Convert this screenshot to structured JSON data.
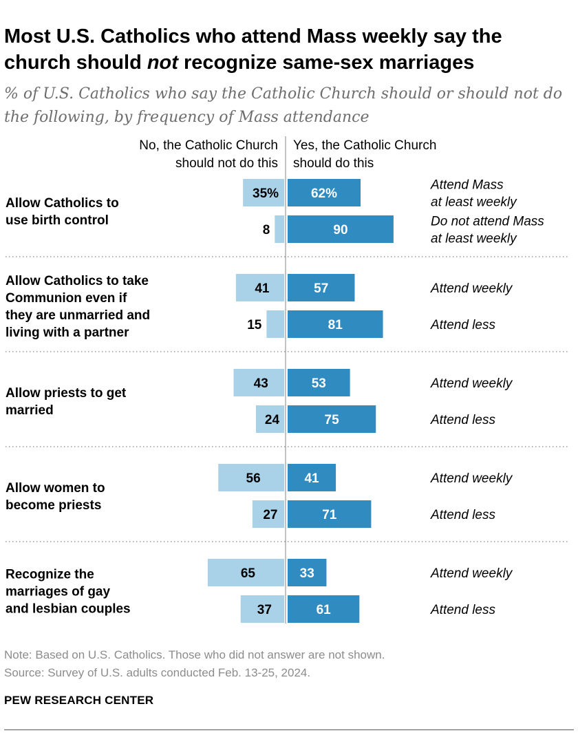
{
  "header": {
    "title_part1": "Most U.S. Catholics who attend Mass weekly say the church should ",
    "title_emphasis": "not",
    "title_part2": " recognize same-sex marriages",
    "subtitle": "% of U.S. Catholics who say the Catholic Church should or should not do the following, by frequency of Mass attendance"
  },
  "chart_data": {
    "type": "bar",
    "orientation": "horizontal-diverging",
    "legend_headers": {
      "negative": [
        "No, the Catholic Church",
        "should not do this"
      ],
      "positive": [
        "Yes, the Catholic Church",
        "should do this"
      ]
    },
    "colors": {
      "negative": "#a9d2e8",
      "positive": "#2f8bc0",
      "positive_text": "#ffffff",
      "negative_text": "#000000"
    },
    "groups": [
      {
        "label": [
          "Allow Catholics to",
          "use birth control"
        ],
        "rows": [
          {
            "group_label": [
              "Attend Mass",
              "at least weekly"
            ],
            "no": 35,
            "yes": 62,
            "no_label": "35%",
            "yes_label": "62%"
          },
          {
            "group_label": [
              "Do not attend Mass",
              "at least weekly"
            ],
            "no": 8,
            "yes": 90,
            "no_label": "8",
            "yes_label": "90"
          }
        ]
      },
      {
        "label": [
          "Allow Catholics to take",
          "Communion even if",
          "they are unmarried and",
          "living with a partner"
        ],
        "rows": [
          {
            "group_label": [
              "Attend weekly"
            ],
            "no": 41,
            "yes": 57,
            "no_label": "41",
            "yes_label": "57"
          },
          {
            "group_label": [
              "Attend less"
            ],
            "no": 15,
            "yes": 81,
            "no_label": "15",
            "yes_label": "81"
          }
        ]
      },
      {
        "label": [
          "Allow priests to get",
          "married"
        ],
        "rows": [
          {
            "group_label": [
              "Attend weekly"
            ],
            "no": 43,
            "yes": 53,
            "no_label": "43",
            "yes_label": "53"
          },
          {
            "group_label": [
              "Attend less"
            ],
            "no": 24,
            "yes": 75,
            "no_label": "24",
            "yes_label": "75"
          }
        ]
      },
      {
        "label": [
          "Allow women to",
          "become priests"
        ],
        "rows": [
          {
            "group_label": [
              "Attend weekly"
            ],
            "no": 56,
            "yes": 41,
            "no_label": "56",
            "yes_label": "41"
          },
          {
            "group_label": [
              "Attend less"
            ],
            "no": 27,
            "yes": 71,
            "no_label": "27",
            "yes_label": "71"
          }
        ]
      },
      {
        "label": [
          "Recognize the",
          "marriages of gay",
          "and lesbian couples"
        ],
        "rows": [
          {
            "group_label": [
              "Attend weekly"
            ],
            "no": 65,
            "yes": 33,
            "no_label": "65",
            "yes_label": "33"
          },
          {
            "group_label": [
              "Attend less"
            ],
            "no": 37,
            "yes": 61,
            "no_label": "37",
            "yes_label": "61"
          }
        ]
      }
    ]
  },
  "footer": {
    "note": "Note: Based on U.S. Catholics. Those who did not answer are not shown.",
    "source": "Source: Survey of U.S. adults conducted Feb. 13-25, 2024.",
    "brand": "PEW RESEARCH CENTER"
  }
}
